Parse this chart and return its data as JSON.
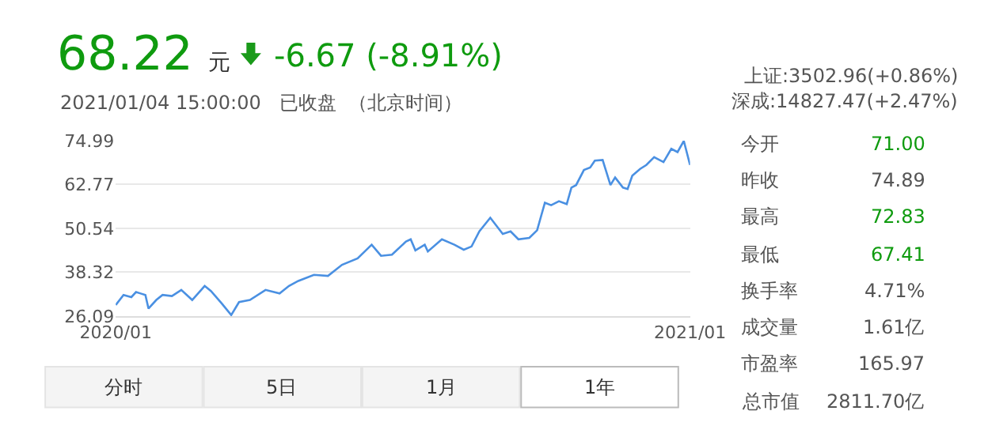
{
  "chart_data": {
    "type": "line",
    "title": "68.22 元",
    "subtitle": "2021/01/04 15:00:00   已收盘  （北京时间）",
    "annotations": [
      "-6.67 (-8.91%)",
      "上证:3502.96(+0.86%)",
      "深成:14827.47(+2.47%)",
      "今开",
      "71.00",
      "昨收",
      "74.89",
      "最高",
      "72.83",
      "最低",
      "67.41",
      "换手率",
      "4.71%",
      "成交量",
      "1.61亿",
      "市盈率",
      "165.97",
      "总市值",
      "2811.70亿",
      "分时",
      "5日",
      "1月",
      "1年"
    ],
    "x": [
      "2020-01-02",
      "2020-01-07",
      "2020-01-12",
      "2020-01-15",
      "2020-01-18",
      "2020-01-21",
      "2020-01-23",
      "2020-01-28",
      "2020-02-01",
      "2020-02-07",
      "2020-02-13",
      "2020-02-20",
      "2020-02-28",
      "2020-03-03",
      "2020-03-10",
      "2020-03-16",
      "2020-03-21",
      "2020-03-28",
      "2020-04-07",
      "2020-04-16",
      "2020-04-22",
      "2020-04-28",
      "2020-05-08",
      "2020-05-17",
      "2020-05-26",
      "2020-06-05",
      "2020-06-14",
      "2020-06-20",
      "2020-06-27",
      "2020-07-06",
      "2020-07-09",
      "2020-07-12",
      "2020-07-18",
      "2020-07-20",
      "2020-07-29",
      "2020-08-06",
      "2020-08-12",
      "2020-08-17",
      "2020-08-22",
      "2020-08-29",
      "2020-09-06",
      "2020-09-11",
      "2020-09-16",
      "2020-09-23",
      "2020-09-28",
      "2020-10-03",
      "2020-10-07",
      "2020-10-12",
      "2020-10-17",
      "2020-10-20",
      "2020-10-23",
      "2020-10-28",
      "2020-11-01",
      "2020-11-04",
      "2020-11-09",
      "2020-11-14",
      "2020-11-17",
      "2020-11-22",
      "2020-11-25",
      "2020-11-28",
      "2020-12-03",
      "2020-12-07",
      "2020-12-12",
      "2020-12-18",
      "2020-12-23",
      "2020-12-27",
      "2020-12-31",
      "2021-01-04"
    ],
    "series": [
      {
        "color": "#4a90e2",
        "values": [
          29.2,
          32.0,
          31.4,
          32.8,
          32.4,
          32.0,
          28.2,
          30.6,
          32.0,
          31.7,
          33.4,
          30.6,
          34.5,
          33.1,
          29.6,
          26.4,
          30.0,
          30.6,
          33.4,
          32.4,
          34.5,
          35.9,
          37.6,
          37.3,
          40.4,
          42.2,
          46.0,
          42.9,
          43.2,
          46.9,
          47.5,
          44.4,
          46.0,
          44.1,
          47.5,
          46.0,
          44.6,
          45.5,
          49.7,
          53.5,
          49.0,
          49.7,
          47.5,
          47.9,
          50.0,
          57.7,
          57.0,
          58.1,
          57.3,
          61.9,
          62.6,
          66.8,
          67.5,
          69.4,
          69.6,
          62.6,
          64.7,
          61.9,
          61.5,
          65.2,
          67.1,
          68.2,
          70.4,
          69.0,
          72.7,
          71.8,
          74.9,
          68.2
        ]
      }
    ],
    "xlim": [
      "2020-01-02",
      "2021-01-04"
    ],
    "xticks": [
      {
        "value": "2020-01-02",
        "label": "2020/01"
      },
      {
        "value": "2021-01-04",
        "label": "2021/01"
      }
    ],
    "ylim": [
      26.09,
      74.99
    ],
    "yticks": [
      26.09,
      38.32,
      50.54,
      62.77,
      74.99
    ],
    "grid": "y",
    "marker": "none",
    "line_style": "solid"
  }
}
